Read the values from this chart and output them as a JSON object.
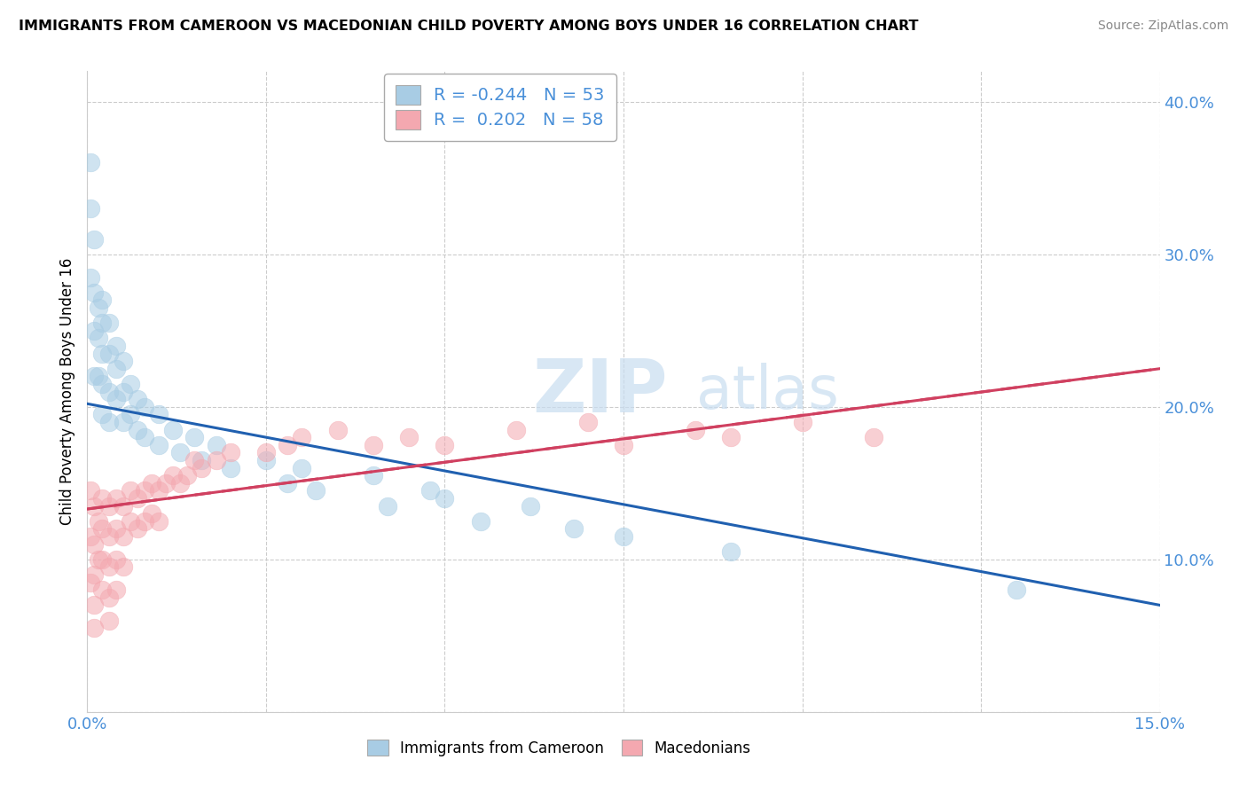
{
  "title": "IMMIGRANTS FROM CAMEROON VS MACEDONIAN CHILD POVERTY AMONG BOYS UNDER 16 CORRELATION CHART",
  "source": "Source: ZipAtlas.com",
  "ylabel": "Child Poverty Among Boys Under 16",
  "xlim": [
    0.0,
    0.15
  ],
  "ylim": [
    0.0,
    0.42
  ],
  "xticks": [
    0.0,
    0.025,
    0.05,
    0.075,
    0.1,
    0.125,
    0.15
  ],
  "yticks": [
    0.0,
    0.1,
    0.2,
    0.3,
    0.4
  ],
  "blue_R": "-0.244",
  "blue_N": "53",
  "pink_R": "0.202",
  "pink_N": "58",
  "blue_color": "#a8cce4",
  "pink_color": "#f4a8b0",
  "blue_line_color": "#2060b0",
  "pink_line_color": "#d04060",
  "legend_label_blue": "Immigrants from Cameroon",
  "legend_label_pink": "Macedonians",
  "blue_line_y0": 0.202,
  "blue_line_y1": 0.07,
  "pink_line_y0": 0.133,
  "pink_line_y1": 0.225,
  "blue_points_x": [
    0.0005,
    0.0005,
    0.0005,
    0.001,
    0.001,
    0.001,
    0.001,
    0.0015,
    0.0015,
    0.0015,
    0.002,
    0.002,
    0.002,
    0.002,
    0.002,
    0.003,
    0.003,
    0.003,
    0.003,
    0.004,
    0.004,
    0.004,
    0.005,
    0.005,
    0.005,
    0.006,
    0.006,
    0.007,
    0.007,
    0.008,
    0.008,
    0.01,
    0.01,
    0.012,
    0.013,
    0.015,
    0.016,
    0.018,
    0.02,
    0.025,
    0.028,
    0.03,
    0.032,
    0.04,
    0.042,
    0.048,
    0.05,
    0.055,
    0.062,
    0.068,
    0.075,
    0.09,
    0.13
  ],
  "blue_points_y": [
    0.36,
    0.33,
    0.285,
    0.31,
    0.275,
    0.25,
    0.22,
    0.265,
    0.245,
    0.22,
    0.27,
    0.255,
    0.235,
    0.215,
    0.195,
    0.255,
    0.235,
    0.21,
    0.19,
    0.24,
    0.225,
    0.205,
    0.23,
    0.21,
    0.19,
    0.215,
    0.195,
    0.205,
    0.185,
    0.2,
    0.18,
    0.195,
    0.175,
    0.185,
    0.17,
    0.18,
    0.165,
    0.175,
    0.16,
    0.165,
    0.15,
    0.16,
    0.145,
    0.155,
    0.135,
    0.145,
    0.14,
    0.125,
    0.135,
    0.12,
    0.115,
    0.105,
    0.08
  ],
  "pink_points_x": [
    0.0005,
    0.0005,
    0.0005,
    0.001,
    0.001,
    0.001,
    0.001,
    0.001,
    0.0015,
    0.0015,
    0.002,
    0.002,
    0.002,
    0.002,
    0.003,
    0.003,
    0.003,
    0.003,
    0.003,
    0.004,
    0.004,
    0.004,
    0.004,
    0.005,
    0.005,
    0.005,
    0.006,
    0.006,
    0.007,
    0.007,
    0.008,
    0.008,
    0.009,
    0.009,
    0.01,
    0.01,
    0.011,
    0.012,
    0.013,
    0.014,
    0.015,
    0.016,
    0.018,
    0.02,
    0.025,
    0.028,
    0.03,
    0.035,
    0.04,
    0.045,
    0.05,
    0.06,
    0.07,
    0.075,
    0.085,
    0.09,
    0.1,
    0.11
  ],
  "pink_points_y": [
    0.145,
    0.115,
    0.085,
    0.135,
    0.11,
    0.09,
    0.07,
    0.055,
    0.125,
    0.1,
    0.14,
    0.12,
    0.1,
    0.08,
    0.135,
    0.115,
    0.095,
    0.075,
    0.06,
    0.14,
    0.12,
    0.1,
    0.08,
    0.135,
    0.115,
    0.095,
    0.145,
    0.125,
    0.14,
    0.12,
    0.145,
    0.125,
    0.15,
    0.13,
    0.145,
    0.125,
    0.15,
    0.155,
    0.15,
    0.155,
    0.165,
    0.16,
    0.165,
    0.17,
    0.17,
    0.175,
    0.18,
    0.185,
    0.175,
    0.18,
    0.175,
    0.185,
    0.19,
    0.175,
    0.185,
    0.18,
    0.19,
    0.18
  ]
}
